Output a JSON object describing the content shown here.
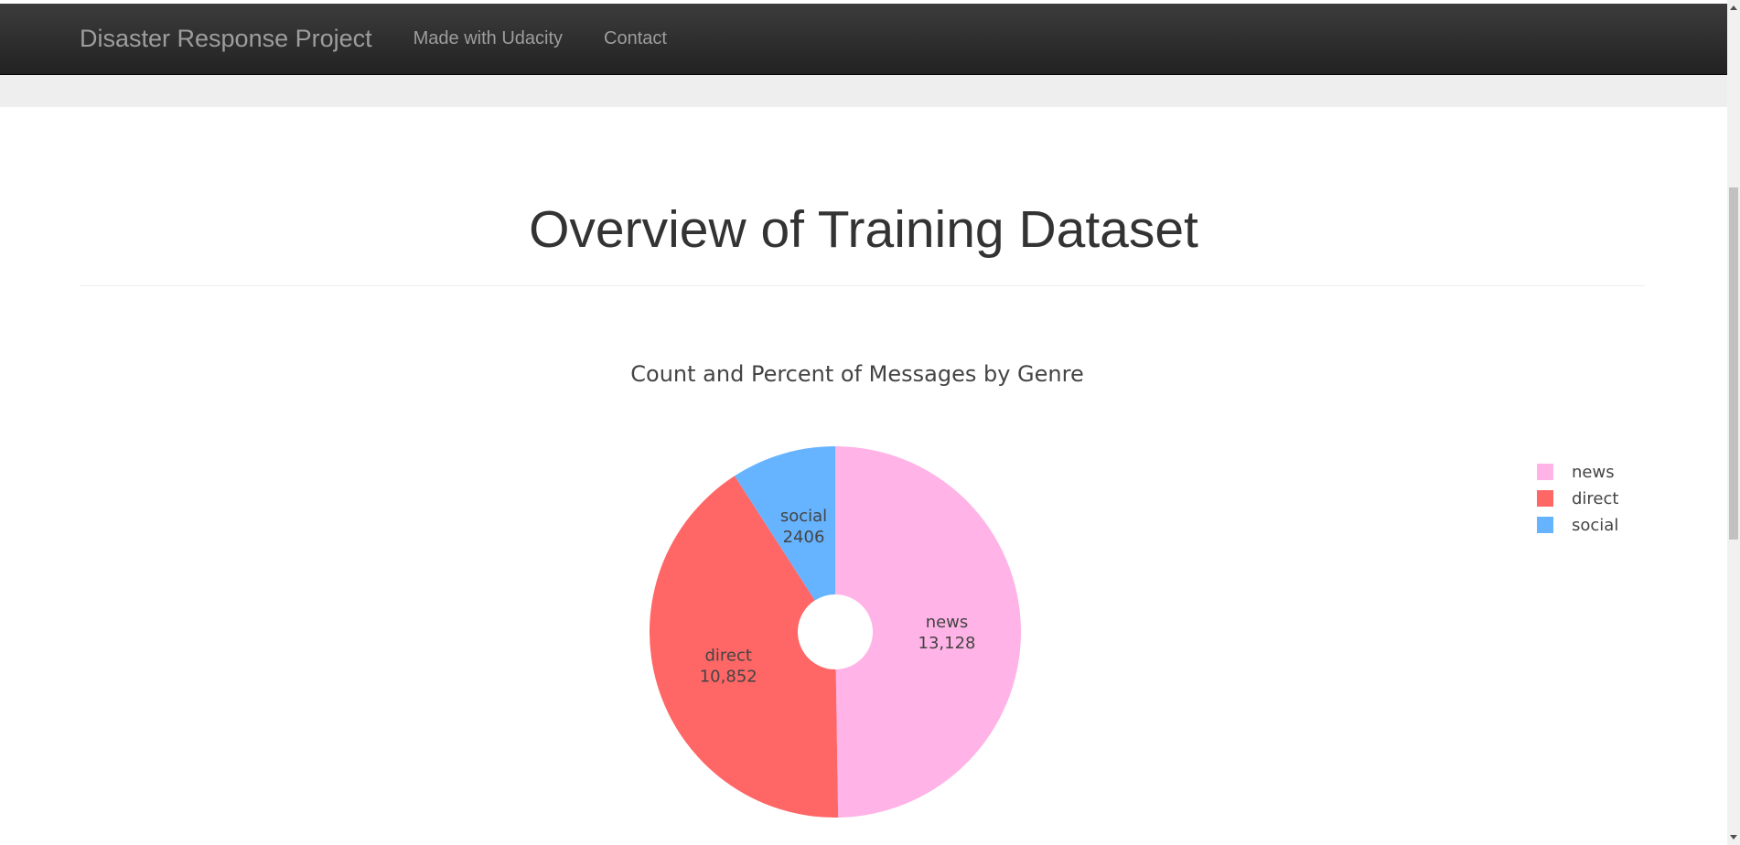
{
  "navbar": {
    "brand": "Disaster Response Project",
    "links": [
      "Made with Udacity",
      "Contact"
    ]
  },
  "page": {
    "title": "Overview of Training Dataset"
  },
  "chart_data": {
    "type": "pie",
    "title": "Count and Percent of Messages by Genre",
    "hole": true,
    "labels": [
      "news",
      "direct",
      "social"
    ],
    "values": [
      13128,
      10852,
      2406
    ],
    "display_values": [
      "13,128",
      "10,852",
      "2406"
    ],
    "colors": [
      "#ffb3e6",
      "#ff6666",
      "#66b3ff"
    ],
    "legend": {
      "placement": "top-right",
      "entries": [
        "news",
        "direct",
        "social"
      ]
    }
  }
}
